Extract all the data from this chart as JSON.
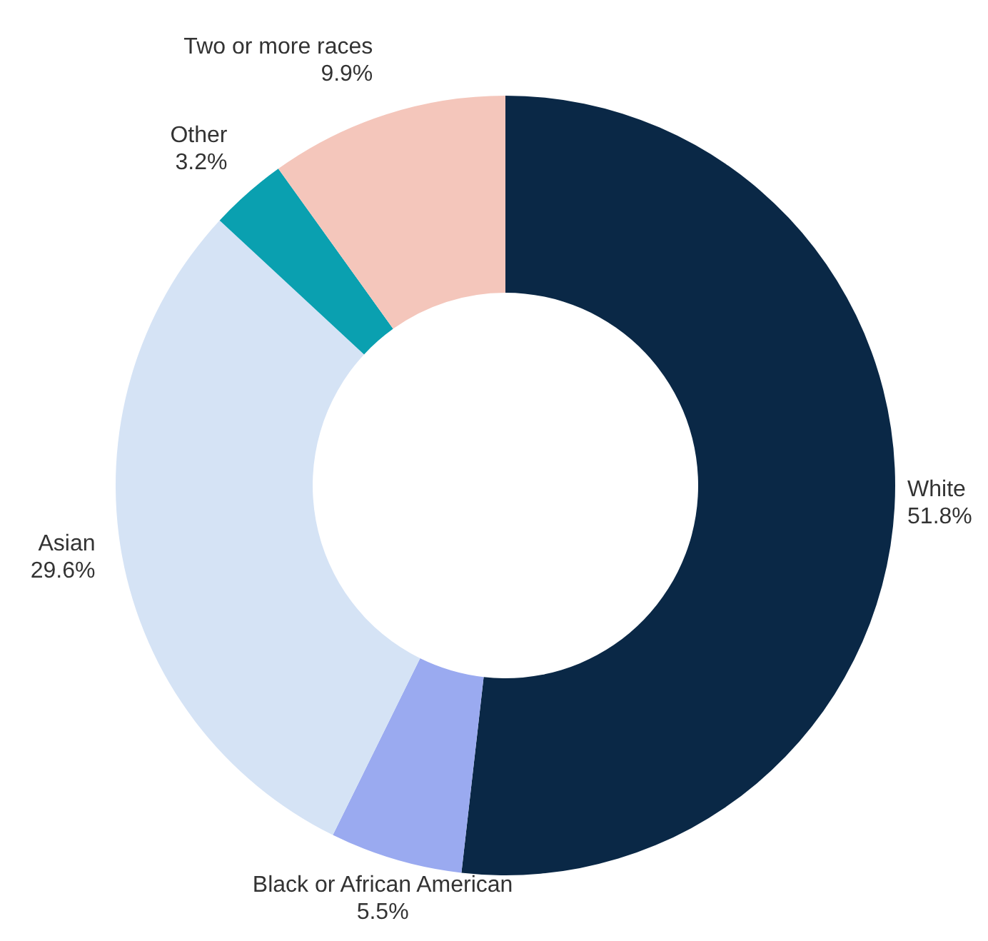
{
  "chart_data": {
    "type": "donut",
    "categories": [
      "White",
      "Black or African American",
      "Asian",
      "Other",
      "Two or more races"
    ],
    "values": [
      51.8,
      5.5,
      29.6,
      3.2,
      9.9
    ],
    "value_labels": [
      "51.8%",
      "5.5%",
      "29.6%",
      "3.2%",
      "9.9%"
    ],
    "colors": [
      "#0a2846",
      "#9aaaf0",
      "#d5e3f5",
      "#0aa0b0",
      "#f4c6bb"
    ],
    "legend": false
  }
}
